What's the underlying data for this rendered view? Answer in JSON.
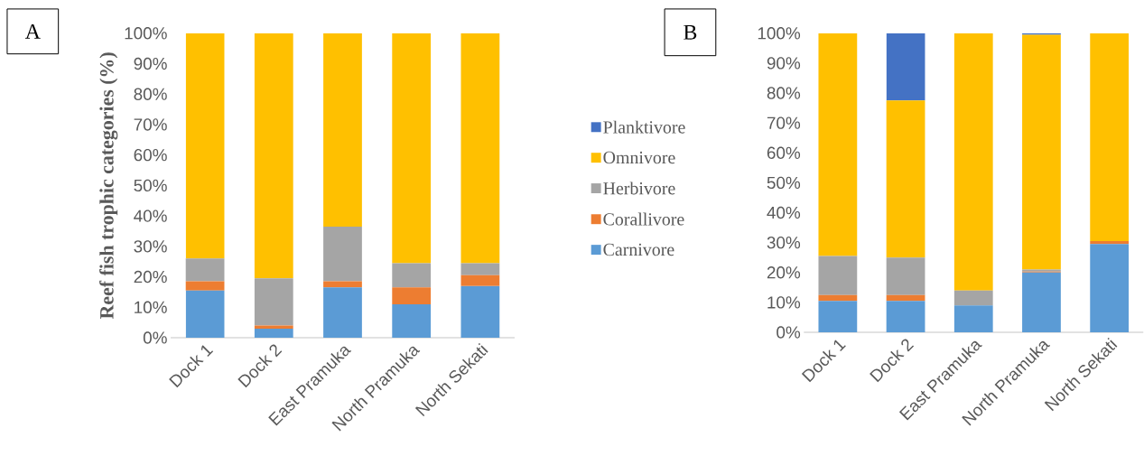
{
  "chart_data": [
    {
      "type": "bar",
      "stacked": true,
      "ylabel": "Reef fish trophic categories (%)",
      "annotations": [
        "A"
      ],
      "categories": [
        "Dock 1",
        "Dock 2",
        "East Pramuka",
        "North Pramuka",
        "North Sekati"
      ],
      "ylim": [
        0,
        100
      ],
      "yticks": [
        {
          "value": 0,
          "label": "0%"
        },
        {
          "value": 10,
          "label": "10%"
        },
        {
          "value": 20,
          "label": "20%"
        },
        {
          "value": 30,
          "label": "30%"
        },
        {
          "value": 40,
          "label": "40%"
        },
        {
          "value": 50,
          "label": "50%"
        },
        {
          "value": 60,
          "label": "60%"
        },
        {
          "value": 70,
          "label": "70%"
        },
        {
          "value": 80,
          "label": "80%"
        },
        {
          "value": 90,
          "label": "90%"
        },
        {
          "value": 100,
          "label": "100%"
        }
      ],
      "grid": false,
      "series": [
        {
          "color": "#5b9bd5",
          "values": [
            15.5,
            3,
            16.5,
            11,
            17
          ]
        },
        {
          "color": "#ed7d31",
          "values": [
            3,
            1,
            2,
            5.5,
            3.5
          ]
        },
        {
          "color": "#a5a5a5",
          "values": [
            7.5,
            15.5,
            18,
            8,
            4
          ]
        },
        {
          "color": "#ffc000",
          "values": [
            74,
            80.5,
            63.5,
            75.5,
            75.5
          ]
        }
      ]
    },
    {
      "type": "bar",
      "stacked": true,
      "annotations": [
        "B"
      ],
      "legend": "left",
      "categories": [
        "Dock 1",
        "Dock 2",
        "East Pramuka",
        "North Pramuka",
        "North Sekati"
      ],
      "ylim": [
        0,
        100
      ],
      "yticks": [
        {
          "value": 0,
          "label": "0%"
        },
        {
          "value": 10,
          "label": "10%"
        },
        {
          "value": 20,
          "label": "20%"
        },
        {
          "value": 30,
          "label": "30%"
        },
        {
          "value": 40,
          "label": "40%"
        },
        {
          "value": 50,
          "label": "50%"
        },
        {
          "value": 60,
          "label": "60%"
        },
        {
          "value": 70,
          "label": "70%"
        },
        {
          "value": 80,
          "label": "80%"
        },
        {
          "value": 90,
          "label": "90%"
        },
        {
          "value": 100,
          "label": "100%"
        }
      ],
      "grid": false,
      "series": [
        {
          "name": "Carnivore",
          "color": "#5b9bd5",
          "values": [
            10.5,
            10.5,
            9,
            20,
            29.5
          ]
        },
        {
          "name": "Corallivore",
          "color": "#ed7d31",
          "values": [
            2,
            2,
            0,
            0.3,
            1
          ]
        },
        {
          "name": "Herbivore",
          "color": "#a5a5a5",
          "values": [
            13,
            12.5,
            5,
            0.7,
            0
          ]
        },
        {
          "name": "Omnivore",
          "color": "#ffc000",
          "values": [
            74.5,
            52.5,
            86,
            78.5,
            69.5
          ]
        },
        {
          "name": "Planktivore",
          "color": "#4472c4",
          "values": [
            0,
            22.5,
            0,
            0.5,
            0
          ]
        }
      ]
    }
  ]
}
